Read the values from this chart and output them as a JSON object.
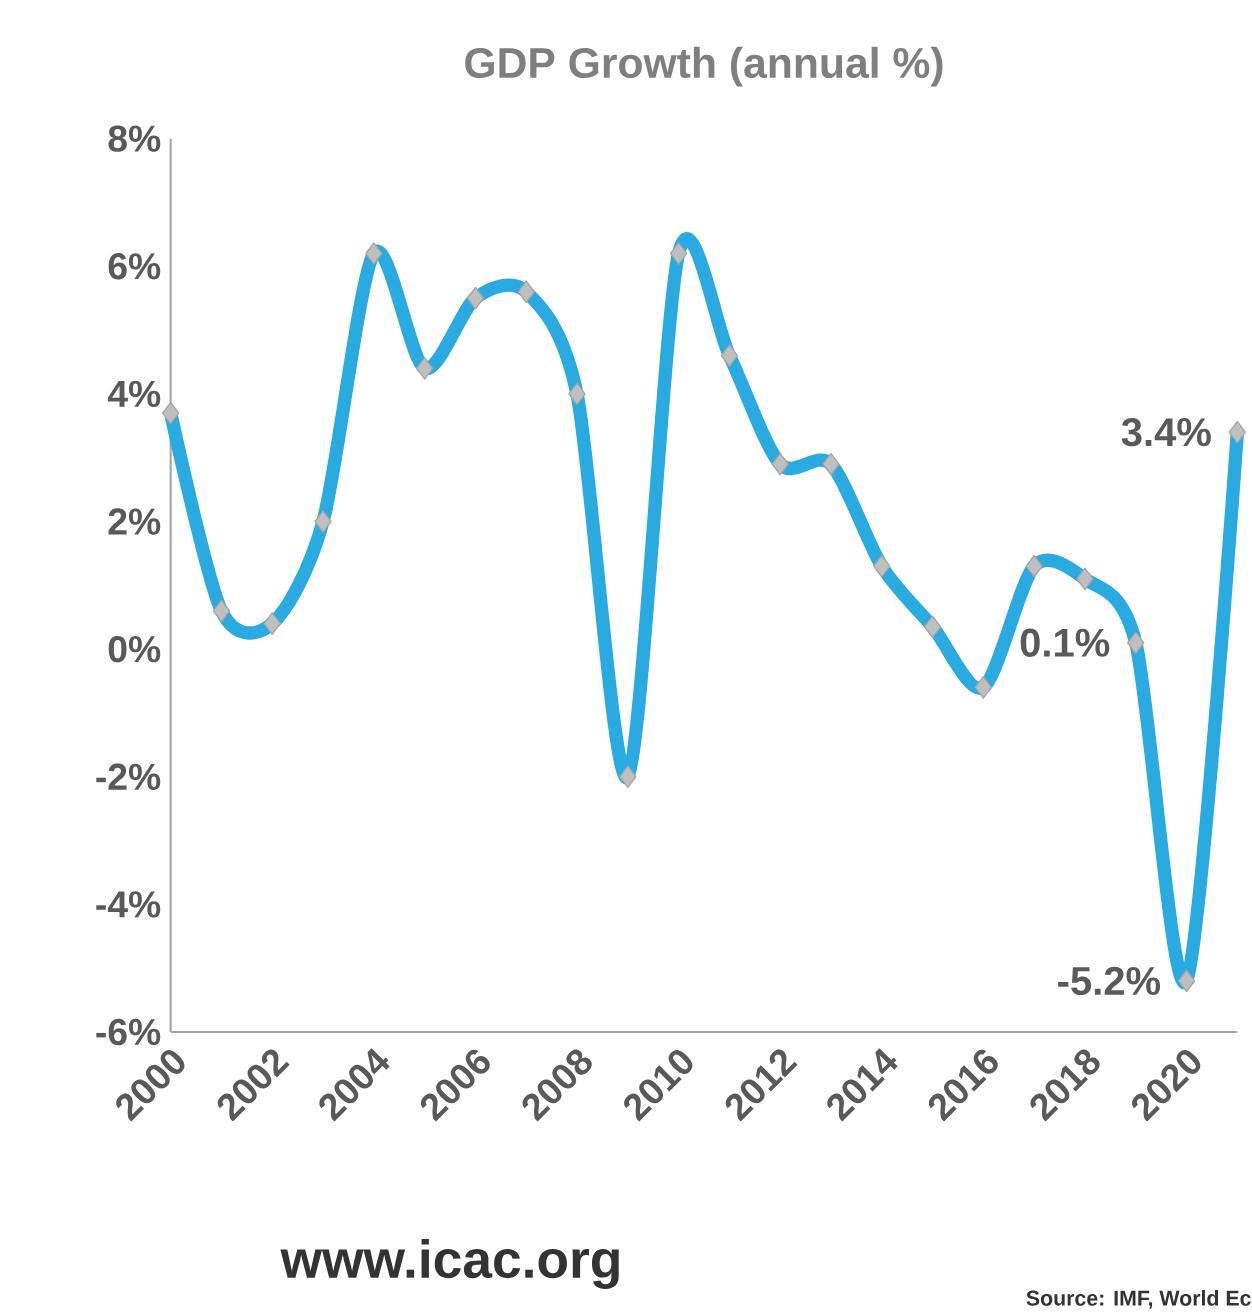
{
  "chart_data": {
    "type": "line",
    "title": "GDP Growth (annual %)",
    "x": [
      2000,
      2001,
      2002,
      2003,
      2004,
      2005,
      2006,
      2007,
      2008,
      2009,
      2010,
      2011,
      2012,
      2013,
      2014,
      2015,
      2016,
      2017,
      2018,
      2019,
      2020,
      2021
    ],
    "series": [
      {
        "color": "#29abe2",
        "values": [
          3.7,
          0.6,
          0.4,
          2.0,
          6.2,
          4.4,
          5.5,
          5.6,
          4.0,
          -2.0,
          6.2,
          4.6,
          2.9,
          2.9,
          1.3,
          0.35,
          -0.6,
          1.3,
          1.1,
          0.1,
          -5.2,
          3.4
        ],
        "value_labels": [
          null,
          null,
          null,
          null,
          null,
          null,
          null,
          null,
          null,
          null,
          null,
          null,
          null,
          null,
          null,
          null,
          null,
          null,
          null,
          "0.1%",
          "-5.2%",
          "3.4%"
        ]
      }
    ],
    "xlim": [
      2000,
      2021
    ],
    "xticks": [
      2000,
      2002,
      2004,
      2006,
      2008,
      2010,
      2012,
      2014,
      2016,
      2018,
      2020
    ],
    "ylim": [
      -6,
      8
    ],
    "yticks": [
      {
        "value": -6,
        "label": "-6%"
      },
      {
        "value": -4,
        "label": "-4%"
      },
      {
        "value": -2,
        "label": "-2%"
      },
      {
        "value": 0,
        "label": "0%"
      },
      {
        "value": 2,
        "label": "2%"
      },
      {
        "value": 4,
        "label": "4%"
      },
      {
        "value": 6,
        "label": "6%"
      },
      {
        "value": 8,
        "label": "8%"
      }
    ],
    "marker": "diamond",
    "line_style": "solid",
    "annotations": [
      "www.icac.org",
      "Source: IMF, World Ec"
    ]
  }
}
